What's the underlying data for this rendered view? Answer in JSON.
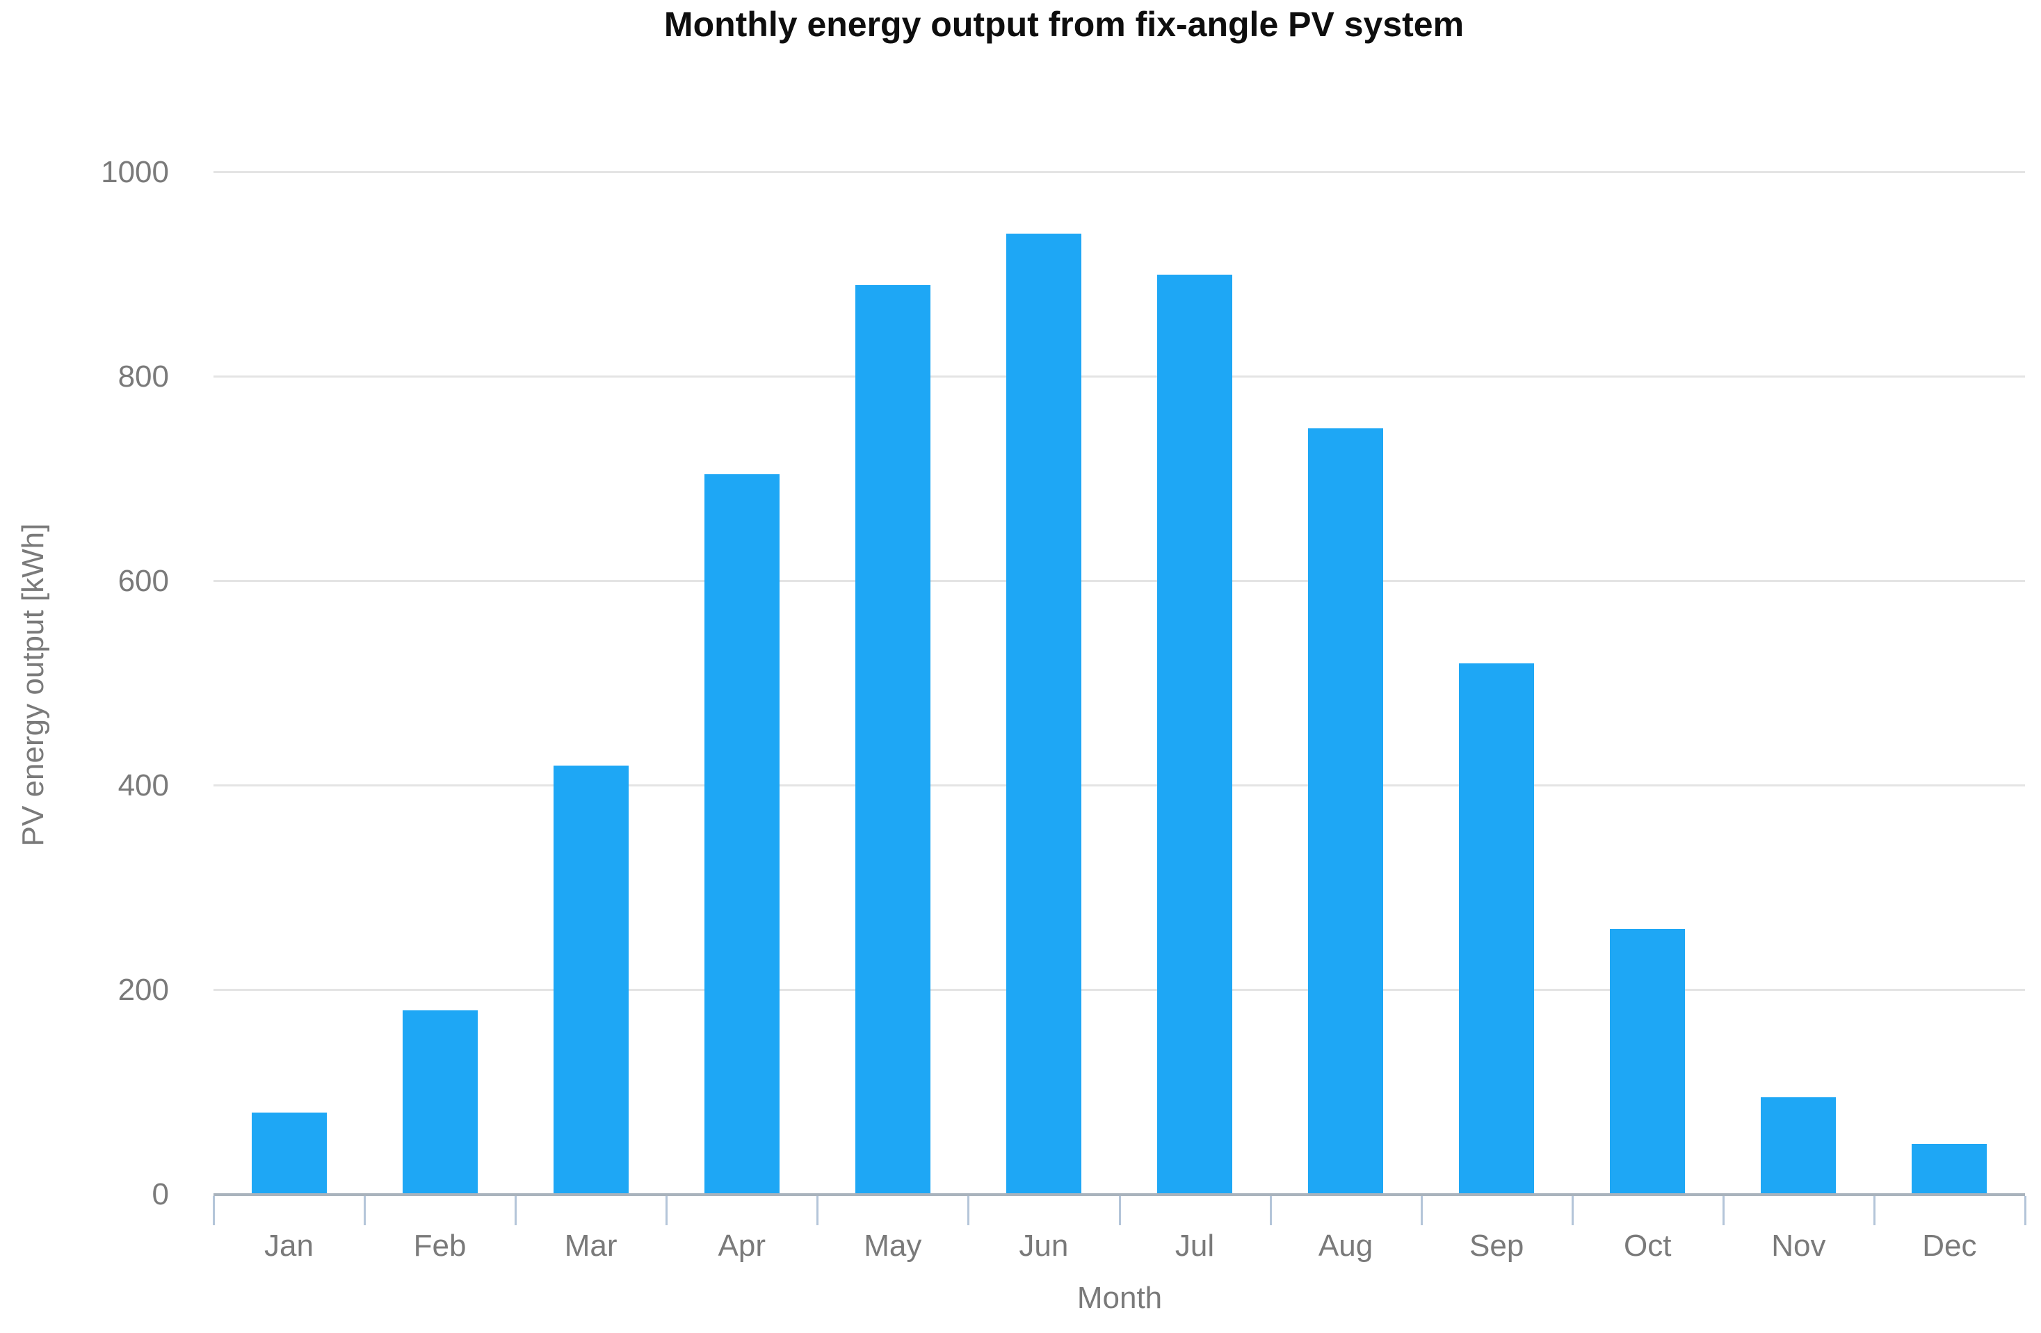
{
  "chart_data": {
    "type": "bar",
    "title": "Monthly energy output from fix-angle PV system",
    "xlabel": "Month",
    "ylabel": "PV energy output [kWh]",
    "categories": [
      "Jan",
      "Feb",
      "Mar",
      "Apr",
      "May",
      "Jun",
      "Jul",
      "Aug",
      "Sep",
      "Oct",
      "Nov",
      "Dec"
    ],
    "values": [
      80,
      180,
      420,
      705,
      890,
      940,
      900,
      750,
      520,
      260,
      95,
      50
    ],
    "ylim": [
      0,
      1000
    ],
    "yticks": [
      0,
      200,
      400,
      600,
      800,
      1000
    ],
    "grid": true,
    "legend": "none",
    "colors": {
      "bar": "#1ea7f5",
      "gridline": "#e4e4e4",
      "axis_line": "#a9b3bd",
      "tick_mark": "#b4c5d9",
      "tick_label": "#7a7a7a",
      "title": "#0e0e0e"
    }
  }
}
